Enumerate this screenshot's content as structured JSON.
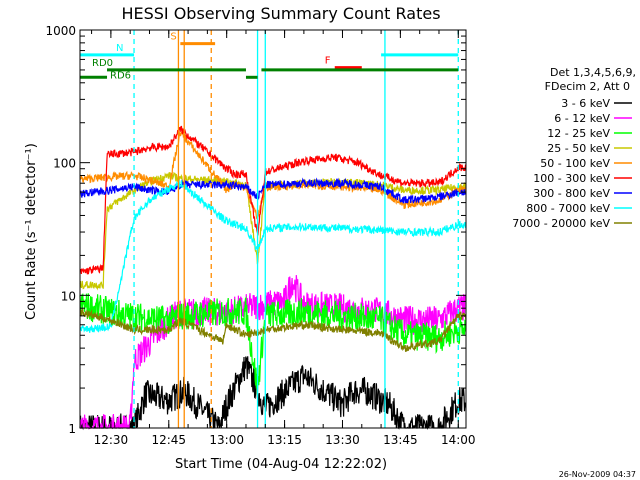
{
  "chart_data": {
    "type": "line",
    "title": "HESSI Observing Summary Count Rates",
    "xlabel": "Start Time (04-Aug-04 12:22:02)",
    "ylabel": "Count Rate (s⁻¹ detector⁻¹)",
    "yscale": "log",
    "ylim": [
      1,
      1000
    ],
    "xlim": [
      "12:22",
      "14:02"
    ],
    "x_ticks": [
      "12:30",
      "12:45",
      "13:00",
      "13:15",
      "13:30",
      "13:45",
      "14:00"
    ],
    "y_ticks": [
      "1",
      "10",
      "100",
      "1000"
    ],
    "grid": false,
    "legend_placement": "right",
    "legend_header": [
      "Det 1,3,4,5,6,9,",
      "FDecim 2, Att 0"
    ],
    "footer_date": "26-Nov-2009 04:37",
    "series": [
      {
        "name": "3 - 6 keV",
        "color": "#000000",
        "x": [
          "12:22",
          "12:36",
          "12:39",
          "12:45",
          "12:49",
          "12:58",
          "13:00",
          "13:05",
          "13:10",
          "13:20",
          "13:30",
          "13:33",
          "13:36",
          "13:42",
          "13:46",
          "13:55",
          "14:00"
        ],
        "values": [
          1,
          1,
          1.8,
          1.6,
          1.9,
          1,
          1.5,
          3.0,
          1.4,
          2.5,
          1.5,
          1.9,
          1.9,
          1.5,
          1,
          1,
          1.6
        ]
      },
      {
        "name": "6 - 12 keV",
        "color": "#ff00ff",
        "x": [
          "12:22",
          "12:35",
          "12:36",
          "12:45",
          "12:48",
          "13:00",
          "13:05",
          "13:15",
          "13:17",
          "13:20",
          "13:30",
          "13:40",
          "13:46",
          "13:55",
          "14:00"
        ],
        "values": [
          1,
          1,
          3.2,
          6.5,
          7.5,
          7.5,
          8.0,
          9.0,
          13,
          8.5,
          8.0,
          7.5,
          6.5,
          6.5,
          8.0
        ]
      },
      {
        "name": "12 - 25 keV",
        "color": "#00ff00",
        "x": [
          "12:22",
          "12:30",
          "12:35",
          "12:45",
          "12:48",
          "13:00",
          "13:05",
          "13:08",
          "13:10",
          "13:20",
          "13:30",
          "13:40",
          "13:46",
          "13:55",
          "14:00"
        ],
        "values": [
          8.5,
          7.5,
          7.0,
          6.5,
          7.0,
          7.5,
          7.5,
          2.0,
          7.0,
          7.5,
          7.0,
          6.5,
          5.0,
          4.8,
          5.5
        ]
      },
      {
        "name": "25 - 50 keV",
        "color": "#c8c800",
        "x": [
          "12:22",
          "12:28",
          "12:29",
          "12:36",
          "12:40",
          "12:45",
          "12:48",
          "13:00",
          "13:05",
          "13:08",
          "13:10",
          "13:20",
          "13:30",
          "13:40",
          "13:46",
          "13:55",
          "14:00"
        ],
        "values": [
          12,
          12,
          45,
          62,
          72,
          80,
          76,
          72,
          68,
          18,
          66,
          70,
          72,
          68,
          62,
          62,
          66
        ]
      },
      {
        "name": "50 - 100 keV",
        "color": "#ff8c00",
        "x": [
          "12:22",
          "12:30",
          "12:36",
          "12:40",
          "12:45",
          "12:48",
          "13:00",
          "13:02",
          "13:05",
          "13:08",
          "13:10",
          "13:20",
          "13:30",
          "13:40",
          "13:46",
          "13:55",
          "14:00"
        ],
        "values": [
          75,
          78,
          80,
          74,
          66,
          170,
          62,
          70,
          64,
          38,
          65,
          68,
          66,
          62,
          48,
          52,
          62
        ]
      },
      {
        "name": "100 - 300 keV",
        "color": "#ff0000",
        "x": [
          "12:22",
          "12:28",
          "12:29",
          "12:36",
          "12:40",
          "12:45",
          "12:48",
          "13:00",
          "13:02",
          "13:05",
          "13:08",
          "13:10",
          "13:20",
          "13:28",
          "13:34",
          "13:40",
          "13:46",
          "13:55",
          "14:00"
        ],
        "values": [
          15,
          16,
          115,
          120,
          130,
          132,
          180,
          90,
          82,
          82,
          28,
          85,
          103,
          110,
          100,
          80,
          70,
          70,
          92
        ]
      },
      {
        "name": "300 - 800 keV",
        "color": "#0000ff",
        "x": [
          "12:22",
          "12:30",
          "12:36",
          "12:40",
          "12:45",
          "12:48",
          "13:00",
          "13:05",
          "13:08",
          "13:10",
          "13:20",
          "13:30",
          "13:40",
          "13:46",
          "13:55",
          "14:00"
        ],
        "values": [
          58,
          62,
          66,
          62,
          60,
          68,
          68,
          65,
          55,
          68,
          70,
          70,
          66,
          52,
          55,
          60
        ]
      },
      {
        "name": "800 - 7000 keV",
        "color": "#00ffff",
        "x": [
          "12:22",
          "12:30",
          "12:36",
          "12:40",
          "12:45",
          "12:48",
          "13:00",
          "13:05",
          "13:08",
          "13:10",
          "13:20",
          "13:30",
          "13:40",
          "13:46",
          "13:55",
          "14:00"
        ],
        "values": [
          5.5,
          5.8,
          38,
          52,
          64,
          70,
          36,
          32,
          22,
          32,
          33,
          32,
          31,
          30,
          30,
          34
        ]
      },
      {
        "name": "7000 - 20000 keV",
        "color": "#808000",
        "x": [
          "12:22",
          "12:30",
          "12:36",
          "12:45",
          "12:48",
          "12:59",
          "13:00",
          "13:05",
          "13:10",
          "13:20",
          "13:30",
          "13:40",
          "13:46",
          "13:55",
          "14:00"
        ],
        "values": [
          7.5,
          6.5,
          5.5,
          5.5,
          6.5,
          4.5,
          6.0,
          5.0,
          5.5,
          6.0,
          5.5,
          5.2,
          4.0,
          4.5,
          7.0
        ]
      }
    ],
    "flag_bars": [
      {
        "label": "N",
        "color": "#00ffff",
        "level": 650,
        "ranges": [
          [
            "12:22",
            "12:36"
          ],
          [
            "13:40",
            "14:00"
          ]
        ]
      },
      {
        "label": "S",
        "color": "#ff8c00",
        "level": 790,
        "ranges": [
          [
            "12:48",
            "12:57"
          ]
        ]
      },
      {
        "label": "F",
        "color": "#ff0000",
        "level": 520,
        "ranges": [
          [
            "13:28",
            "13:35"
          ]
        ]
      },
      {
        "label": "RD0",
        "color": "#008000",
        "level": 500,
        "ranges": [
          [
            "12:29",
            "13:05"
          ],
          [
            "13:09",
            "14:00"
          ]
        ]
      },
      {
        "label": "RD6",
        "color": "#008000",
        "level": 440,
        "ranges": [
          [
            "12:22",
            "12:29"
          ],
          [
            "13:05",
            "13:08"
          ]
        ]
      }
    ],
    "vertical_markers": [
      {
        "x": "12:36",
        "color": "#00ffff",
        "style": "dashed"
      },
      {
        "x": "12:47.5",
        "color": "#ff8c00",
        "style": "solid"
      },
      {
        "x": "12:49",
        "color": "#ff8c00",
        "style": "solid"
      },
      {
        "x": "12:56",
        "color": "#ff8c00",
        "style": "dashed"
      },
      {
        "x": "13:08",
        "color": "#00ffff",
        "style": "solid"
      },
      {
        "x": "13:10",
        "color": "#00ffff",
        "style": "solid"
      },
      {
        "x": "13:41",
        "color": "#00ffff",
        "style": "solid"
      },
      {
        "x": "14:00",
        "color": "#00ffff",
        "style": "dashed"
      }
    ]
  }
}
